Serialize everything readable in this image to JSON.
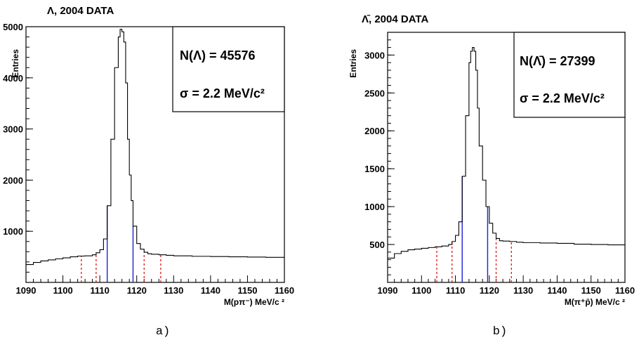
{
  "chart_data": [
    {
      "type": "histogram",
      "title": "Λ, 2004 DATA",
      "xlabel": "M(pπ⁻) MeV/c ²",
      "ylabel": "Entries",
      "xlim": [
        1090,
        1160
      ],
      "ylim": [
        0,
        5000
      ],
      "xticks": [
        1090,
        1100,
        1110,
        1120,
        1130,
        1140,
        1150,
        1160
      ],
      "yticks": [
        1000,
        2000,
        3000,
        4000,
        5000
      ],
      "stats": [
        "N(Λ) = 45576",
        "σ = 2.2 MeV/c²"
      ],
      "bins": {
        "x": [
          1090,
          1092,
          1094,
          1096,
          1098,
          1100,
          1102,
          1104,
          1106,
          1108,
          1109,
          1110,
          1111,
          1112,
          1113,
          1114,
          1115,
          1115.5,
          1116,
          1116.5,
          1117,
          1117.5,
          1118,
          1118.5,
          1119,
          1120,
          1121,
          1122,
          1123,
          1124,
          1126,
          1128,
          1130,
          1135,
          1140,
          1145,
          1150,
          1155,
          1160
        ],
        "y": [
          350,
          390,
          420,
          440,
          460,
          480,
          500,
          515,
          520,
          540,
          580,
          640,
          850,
          1500,
          2800,
          4200,
          4800,
          4950,
          4900,
          4700,
          3900,
          2800,
          2100,
          1600,
          1100,
          760,
          650,
          590,
          560,
          550,
          540,
          530,
          520,
          510,
          505,
          500,
          495,
          490,
          480
        ]
      },
      "blue_cuts": [
        1112,
        1119
      ],
      "red_cuts": [
        1105,
        1109,
        1122,
        1126.5
      ],
      "caption": "a)"
    },
    {
      "type": "histogram",
      "title": "Λ̄, 2004 DATA",
      "xlabel": "M(π⁺p̄) MeV/c ²",
      "ylabel": "Entries",
      "xlim": [
        1090,
        1160
      ],
      "ylim": [
        0,
        3300
      ],
      "xticks": [
        1090,
        1100,
        1110,
        1120,
        1130,
        1140,
        1150,
        1160
      ],
      "yticks": [
        500,
        1000,
        1500,
        2000,
        2500,
        3000
      ],
      "stats": [
        "N(Λ̄) = 27399",
        "σ = 2.2 MeV/c²"
      ],
      "bins": {
        "x": [
          1090,
          1092,
          1094,
          1096,
          1098,
          1100,
          1102,
          1104,
          1106,
          1108,
          1109,
          1110,
          1111,
          1112,
          1113,
          1114,
          1114.5,
          1115,
          1115.5,
          1116,
          1116.5,
          1117,
          1118,
          1119,
          1120,
          1121,
          1122,
          1123,
          1124,
          1126,
          1128,
          1130,
          1135,
          1140,
          1145,
          1150,
          1155,
          1160
        ],
        "y": [
          320,
          380,
          410,
          430,
          440,
          450,
          460,
          470,
          480,
          500,
          540,
          620,
          800,
          1400,
          2200,
          2900,
          3050,
          3100,
          3050,
          2800,
          2300,
          1800,
          1350,
          1000,
          780,
          650,
          580,
          550,
          545,
          540,
          530,
          525,
          520,
          515,
          505,
          500,
          495,
          490
        ]
      },
      "blue_cuts": [
        1112,
        1119.5
      ],
      "red_cuts": [
        1104.5,
        1109,
        1122,
        1126.5
      ],
      "caption": "b)"
    }
  ]
}
